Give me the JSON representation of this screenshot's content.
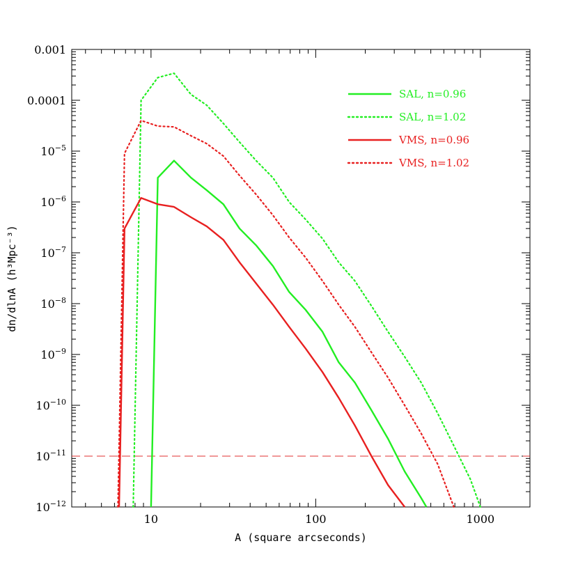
{
  "chart_data": {
    "type": "line",
    "title": "",
    "xlabel": "A (square arcseconds)",
    "ylabel": "dn/dlnA (h³Mpc⁻³)",
    "xscale": "log",
    "yscale": "log",
    "xlim": [
      3.3,
      2000
    ],
    "ylim": [
      1e-12,
      0.001
    ],
    "x_ticks": [
      {
        "value": 10,
        "label": "10"
      },
      {
        "value": 100,
        "label": "100"
      },
      {
        "value": 1000,
        "label": "1000"
      }
    ],
    "y_ticks": [
      {
        "value": 0.001,
        "label": "0.001",
        "base": "",
        "exp": ""
      },
      {
        "value": 0.0001,
        "label": "0.0001",
        "base": "",
        "exp": ""
      },
      {
        "value": 1e-05,
        "label": "",
        "base": "10",
        "exp": "−5"
      },
      {
        "value": 1e-06,
        "label": "",
        "base": "10",
        "exp": "−6"
      },
      {
        "value": 1e-07,
        "label": "",
        "base": "10",
        "exp": "−7"
      },
      {
        "value": 1e-08,
        "label": "",
        "base": "10",
        "exp": "−8"
      },
      {
        "value": 1e-09,
        "label": "",
        "base": "10",
        "exp": "−9"
      },
      {
        "value": 1e-10,
        "label": "",
        "base": "10",
        "exp": "−10"
      },
      {
        "value": 1e-11,
        "label": "",
        "base": "10",
        "exp": "−11"
      },
      {
        "value": 1e-12,
        "label": "",
        "base": "10",
        "exp": "−12"
      }
    ],
    "grid": false,
    "legend_position": "top-right",
    "reference_line": {
      "y": 1e-11,
      "color": "#e03030",
      "style": "dashed"
    },
    "series": [
      {
        "name": "SAL, n=0.96",
        "color": "#22ee22",
        "style": "solid",
        "x": [
          10.0,
          11.0,
          13.8,
          17.5,
          21.8,
          27.5,
          34.5,
          43.5,
          55.0,
          69.0,
          87.0,
          110.0,
          138.0,
          173.0,
          218.0,
          275.0,
          347.0,
          437.0,
          470.0
        ],
        "y": [
          1e-12,
          3e-06,
          6.5e-06,
          3e-06,
          1.7e-06,
          9e-07,
          3e-07,
          1.4e-07,
          5.5e-08,
          1.7e-08,
          7.5e-09,
          2.8e-09,
          7e-10,
          2.8e-10,
          8e-11,
          2.2e-11,
          5e-12,
          1.5e-12,
          1e-12
        ]
      },
      {
        "name": "SAL, n=1.02",
        "color": "#22ee22",
        "style": "dotted",
        "x": [
          7.8,
          8.7,
          11.0,
          13.8,
          17.5,
          21.8,
          27.5,
          34.5,
          43.5,
          55.0,
          69.0,
          87.0,
          110.0,
          138.0,
          173.0,
          218.0,
          275.0,
          347.0,
          437.0,
          550.0,
          690.0,
          870.0,
          1000.0
        ],
        "y": [
          1e-12,
          0.0001,
          0.00028,
          0.00034,
          0.00013,
          8e-05,
          3.5e-05,
          1.5e-05,
          6.5e-06,
          3e-06,
          1e-06,
          4.5e-07,
          1.9e-07,
          6.5e-08,
          2.8e-08,
          9e-09,
          2.8e-09,
          9e-10,
          2.8e-10,
          7e-11,
          1.6e-11,
          3.5e-12,
          1e-12
        ]
      },
      {
        "name": "VMS, n=0.96",
        "color": "#e82020",
        "style": "solid",
        "x": [
          6.4,
          6.9,
          8.7,
          11.0,
          13.8,
          17.5,
          21.8,
          27.5,
          34.5,
          43.5,
          55.0,
          69.0,
          87.0,
          110.0,
          138.0,
          173.0,
          218.0,
          275.0,
          347.0
        ],
        "y": [
          1e-12,
          3e-07,
          1.2e-06,
          9e-07,
          8e-07,
          5e-07,
          3.3e-07,
          1.8e-07,
          6.5e-08,
          2.5e-08,
          9.5e-09,
          3.5e-09,
          1.3e-09,
          4.5e-10,
          1.4e-10,
          4e-11,
          1e-11,
          2.7e-12,
          1e-12
        ]
      },
      {
        "name": "VMS, n=1.02",
        "color": "#e82020",
        "style": "dotted",
        "x": [
          6.3,
          6.9,
          8.7,
          11.0,
          13.8,
          17.5,
          21.8,
          27.5,
          34.5,
          43.5,
          55.0,
          69.0,
          87.0,
          110.0,
          138.0,
          173.0,
          218.0,
          275.0,
          347.0,
          437.0,
          550.0,
          690.0
        ],
        "y": [
          1e-12,
          9e-06,
          4e-05,
          3.1e-05,
          3e-05,
          2e-05,
          1.4e-05,
          8e-06,
          3.3e-06,
          1.4e-06,
          5.5e-07,
          2e-07,
          8e-08,
          2.8e-08,
          9.5e-09,
          3.5e-09,
          1.1e-09,
          3.5e-10,
          1e-10,
          2.8e-11,
          7e-12,
          1e-12
        ]
      }
    ]
  }
}
